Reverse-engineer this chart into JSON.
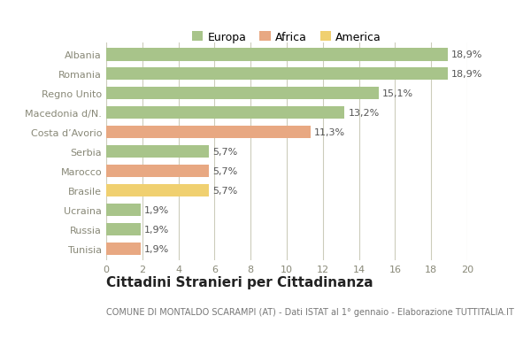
{
  "categories": [
    "Albania",
    "Romania",
    "Regno Unito",
    "Macedonia d/N.",
    "Costa d’Avorio",
    "Serbia",
    "Marocco",
    "Brasile",
    "Ucraina",
    "Russia",
    "Tunisia"
  ],
  "values": [
    18.9,
    18.9,
    15.1,
    13.2,
    11.3,
    5.7,
    5.7,
    5.7,
    1.9,
    1.9,
    1.9
  ],
  "labels": [
    "18,9%",
    "18,9%",
    "15,1%",
    "13,2%",
    "11,3%",
    "5,7%",
    "5,7%",
    "5,7%",
    "1,9%",
    "1,9%",
    "1,9%"
  ],
  "colors": [
    "#a8c48a",
    "#a8c48a",
    "#a8c48a",
    "#a8c48a",
    "#e8a882",
    "#a8c48a",
    "#e8a882",
    "#f0d070",
    "#a8c48a",
    "#a8c48a",
    "#e8a882"
  ],
  "legend_labels": [
    "Europa",
    "Africa",
    "America"
  ],
  "legend_colors": [
    "#a8c48a",
    "#e8a882",
    "#f0d070"
  ],
  "title": "Cittadini Stranieri per Cittadinanza",
  "subtitle": "COMUNE DI MONTALDO SCARAMPI (AT) - Dati ISTAT al 1° gennaio - Elaborazione TUTTITALIA.IT",
  "xlim": [
    0,
    20
  ],
  "xticks": [
    0,
    2,
    4,
    6,
    8,
    10,
    12,
    14,
    16,
    18,
    20
  ],
  "bg_color": "#ffffff",
  "plot_bg_color": "#ffffff",
  "grid_color": "#ccccbb",
  "bar_height": 0.65,
  "title_fontsize": 11,
  "subtitle_fontsize": 7,
  "label_fontsize": 8,
  "tick_fontsize": 8,
  "legend_fontsize": 9
}
